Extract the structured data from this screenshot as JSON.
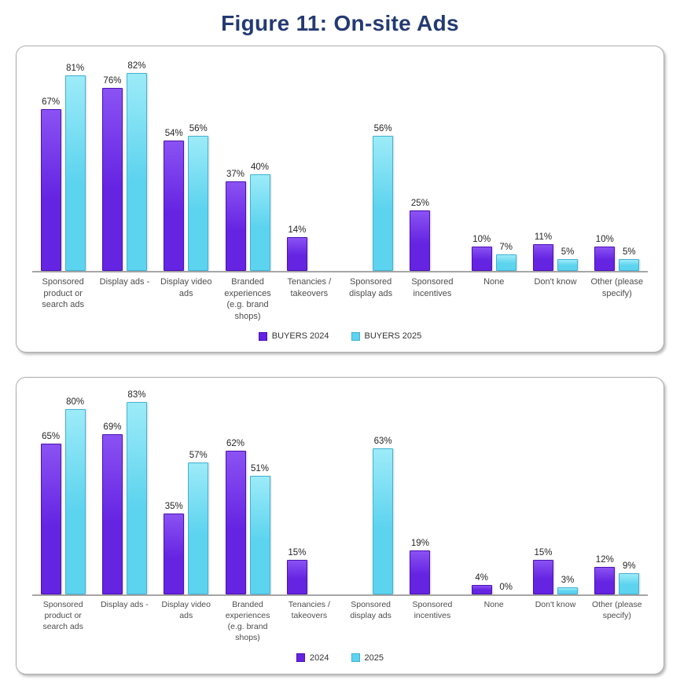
{
  "title": "Figure 11: On-site Ads",
  "colors": {
    "title_text": "#243a73",
    "axis_line": "#a6a6a6",
    "value_label": "#262626",
    "category_label": "#4d4d4d"
  },
  "chart_data": [
    {
      "type": "bar",
      "title": "",
      "categories": [
        "Sponsored product or search ads",
        "Display ads -",
        "Display video ads",
        "Branded experiences (e.g. brand shops)",
        "Tenancies / takeovers",
        "Sponsored display ads",
        "Sponsored incentives",
        "None",
        "Don't know",
        "Other (please specify)"
      ],
      "series": [
        {
          "name": "BUYERS 2024",
          "color": "#6524e2",
          "color_light": "#8a52f3",
          "color_dark": "#4c10b4",
          "values": [
            67,
            76,
            54,
            37,
            14,
            null,
            25,
            10,
            11,
            10
          ]
        },
        {
          "name": "BUYERS 2025",
          "color": "#5cd3ef",
          "color_light": "#9debf8",
          "color_dark": "#41b2d3",
          "values": [
            81,
            82,
            56,
            40,
            null,
            56,
            null,
            7,
            5,
            5
          ]
        }
      ],
      "ylim": [
        0,
        88
      ],
      "value_suffix": "%",
      "grid": false,
      "legend_position": "bottom"
    },
    {
      "type": "bar",
      "title": "",
      "categories": [
        "Sponsored product or search ads",
        "Display ads -",
        "Display video ads",
        "Branded experiences (e.g. brand shops)",
        "Tenancies / takeovers",
        "Sponsored display ads",
        "Sponsored incentives",
        "None",
        "Don't know",
        "Other (please specify)"
      ],
      "series": [
        {
          "name": "2024",
          "color": "#6524e2",
          "color_light": "#8a52f3",
          "color_dark": "#4c10b4",
          "values": [
            65,
            69,
            35,
            62,
            15,
            null,
            19,
            4,
            15,
            12
          ]
        },
        {
          "name": "2025",
          "color": "#5cd3ef",
          "color_light": "#9debf8",
          "color_dark": "#41b2d3",
          "values": [
            80,
            83,
            57,
            51,
            null,
            63,
            null,
            0,
            3,
            9
          ]
        }
      ],
      "ylim": [
        0,
        88
      ],
      "value_suffix": "%",
      "grid": false,
      "legend_position": "bottom"
    }
  ]
}
